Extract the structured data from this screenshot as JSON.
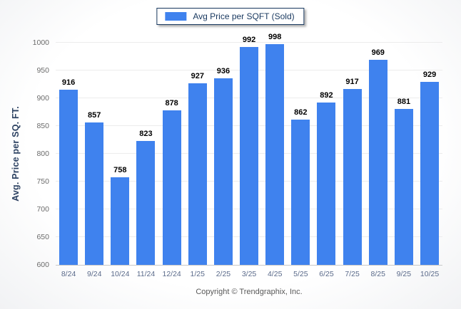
{
  "legend": {
    "label": "Avg Price per SQFT (Sold)",
    "swatch_color": "#3F82EE"
  },
  "footer": {
    "copyright": "Copyright © Trendgraphix, Inc."
  },
  "chart_data": {
    "type": "bar",
    "title": "",
    "series_name": "Avg Price per SQFT (Sold)",
    "categories": [
      "8/24",
      "9/24",
      "10/24",
      "11/24",
      "12/24",
      "1/25",
      "2/25",
      "3/25",
      "4/25",
      "5/25",
      "6/25",
      "7/25",
      "8/25",
      "9/25",
      "10/25"
    ],
    "values": [
      916,
      857,
      758,
      823,
      878,
      927,
      936,
      992,
      998,
      862,
      892,
      917,
      969,
      881,
      929
    ],
    "xlabel": "",
    "ylabel": "Avg. Price per SQ. FT.",
    "ylim": [
      600,
      1000
    ],
    "ytick_step": 50,
    "yticks": [
      600,
      650,
      700,
      750,
      800,
      850,
      900,
      950,
      1000
    ],
    "grid": true,
    "value_labels": true,
    "legend_position": "top-center",
    "bar_color": "#3F82EE",
    "gridline_color": "#ececec",
    "axis_line_color": "#c8c8c8"
  }
}
